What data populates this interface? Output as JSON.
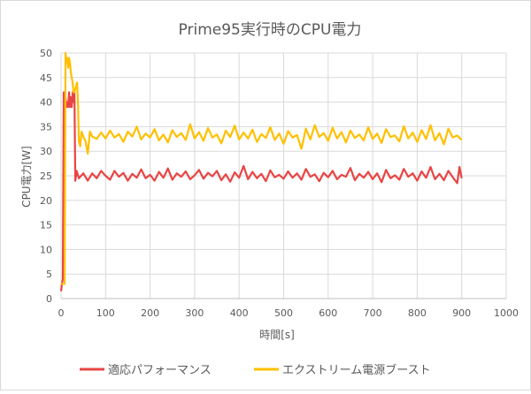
{
  "chart_data": {
    "type": "line",
    "title": "Prime95実行時のCPU電力",
    "xlabel": "時間[s]",
    "ylabel": "CPU電力[W]",
    "xlim": [
      0,
      1000
    ],
    "ylim": [
      0,
      50
    ],
    "xticks": [
      0,
      100,
      200,
      300,
      400,
      500,
      600,
      700,
      800,
      900,
      1000
    ],
    "yticks": [
      0,
      5,
      10,
      15,
      20,
      25,
      30,
      35,
      40,
      45,
      50
    ],
    "grid": true,
    "legend": "bottom",
    "series": [
      {
        "name": "適応パフォーマンス",
        "color": "#e84545",
        "points": [
          [
            0,
            1.5
          ],
          [
            2,
            3
          ],
          [
            4,
            4
          ],
          [
            6,
            42
          ],
          [
            8,
            39
          ],
          [
            10,
            41
          ],
          [
            12,
            39
          ],
          [
            14,
            40
          ],
          [
            16,
            39
          ],
          [
            18,
            42
          ],
          [
            20,
            39
          ],
          [
            22,
            41
          ],
          [
            24,
            39
          ],
          [
            26,
            42
          ],
          [
            28,
            40
          ],
          [
            30,
            42
          ],
          [
            32,
            24
          ],
          [
            35,
            26
          ],
          [
            40,
            24.5
          ],
          [
            50,
            25.5
          ],
          [
            60,
            24
          ],
          [
            70,
            25.5
          ],
          [
            80,
            24.5
          ],
          [
            90,
            26
          ],
          [
            100,
            25
          ],
          [
            110,
            24.2
          ],
          [
            120,
            26
          ],
          [
            130,
            24.8
          ],
          [
            140,
            25.6
          ],
          [
            150,
            24
          ],
          [
            160,
            25.4
          ],
          [
            170,
            24.6
          ],
          [
            180,
            26.3
          ],
          [
            190,
            24.5
          ],
          [
            200,
            25.2
          ],
          [
            210,
            24
          ],
          [
            220,
            25.8
          ],
          [
            230,
            24.6
          ],
          [
            240,
            26.5
          ],
          [
            250,
            24.2
          ],
          [
            260,
            25.5
          ],
          [
            270,
            24.8
          ],
          [
            280,
            25.9
          ],
          [
            290,
            24.3
          ],
          [
            300,
            25.1
          ],
          [
            310,
            26.2
          ],
          [
            320,
            24.4
          ],
          [
            330,
            25.6
          ],
          [
            340,
            24.9
          ],
          [
            350,
            26
          ],
          [
            360,
            24.1
          ],
          [
            370,
            25.3
          ],
          [
            380,
            23.8
          ],
          [
            390,
            25.7
          ],
          [
            400,
            24.6
          ],
          [
            410,
            27
          ],
          [
            420,
            24.3
          ],
          [
            430,
            25.8
          ],
          [
            440,
            24.5
          ],
          [
            450,
            25.4
          ],
          [
            460,
            23.9
          ],
          [
            470,
            26.1
          ],
          [
            480,
            24.7
          ],
          [
            490,
            25.2
          ],
          [
            500,
            24.4
          ],
          [
            510,
            25.9
          ],
          [
            520,
            24.6
          ],
          [
            530,
            25.5
          ],
          [
            540,
            24.2
          ],
          [
            550,
            26.4
          ],
          [
            560,
            24.8
          ],
          [
            570,
            25.3
          ],
          [
            580,
            23.9
          ],
          [
            590,
            25.6
          ],
          [
            600,
            24.7
          ],
          [
            610,
            26
          ],
          [
            620,
            24.3
          ],
          [
            630,
            25.2
          ],
          [
            640,
            24.8
          ],
          [
            650,
            26.6
          ],
          [
            660,
            24.1
          ],
          [
            670,
            25.4
          ],
          [
            680,
            24.6
          ],
          [
            690,
            25.8
          ],
          [
            700,
            24.3
          ],
          [
            710,
            25.5
          ],
          [
            720,
            23.7
          ],
          [
            730,
            26.2
          ],
          [
            740,
            24.5
          ],
          [
            750,
            25.1
          ],
          [
            760,
            24.2
          ],
          [
            770,
            26.4
          ],
          [
            780,
            24.8
          ],
          [
            790,
            25.5
          ],
          [
            800,
            24
          ],
          [
            810,
            25.9
          ],
          [
            820,
            24.6
          ],
          [
            830,
            26.8
          ],
          [
            840,
            24.3
          ],
          [
            850,
            25.4
          ],
          [
            860,
            24.1
          ],
          [
            870,
            26
          ],
          [
            880,
            24.7
          ],
          [
            890,
            23.5
          ],
          [
            895,
            26.8
          ],
          [
            900,
            24.5
          ]
        ]
      },
      {
        "name": "エクストリーム電源ブースト",
        "color": "#ffc000",
        "points": [
          [
            0,
            3
          ],
          [
            4,
            3
          ],
          [
            8,
            3
          ],
          [
            10,
            50
          ],
          [
            12,
            48
          ],
          [
            14,
            49
          ],
          [
            16,
            47
          ],
          [
            18,
            49
          ],
          [
            20,
            48
          ],
          [
            22,
            46
          ],
          [
            24,
            45
          ],
          [
            26,
            44
          ],
          [
            28,
            42
          ],
          [
            30,
            42
          ],
          [
            33,
            43
          ],
          [
            36,
            44
          ],
          [
            38,
            40
          ],
          [
            40,
            32
          ],
          [
            43,
            31
          ],
          [
            46,
            34
          ],
          [
            50,
            33
          ],
          [
            55,
            32
          ],
          [
            60,
            29.5
          ],
          [
            65,
            34
          ],
          [
            70,
            33
          ],
          [
            80,
            32.5
          ],
          [
            90,
            33.8
          ],
          [
            100,
            32.6
          ],
          [
            110,
            34.2
          ],
          [
            120,
            32.8
          ],
          [
            130,
            33.5
          ],
          [
            140,
            31.9
          ],
          [
            150,
            34
          ],
          [
            160,
            33
          ],
          [
            170,
            35
          ],
          [
            180,
            32.4
          ],
          [
            190,
            33.6
          ],
          [
            200,
            32.8
          ],
          [
            210,
            34.5
          ],
          [
            220,
            32.2
          ],
          [
            230,
            33.4
          ],
          [
            240,
            31.8
          ],
          [
            250,
            34.3
          ],
          [
            260,
            32.9
          ],
          [
            270,
            33.7
          ],
          [
            280,
            32.3
          ],
          [
            290,
            35.5
          ],
          [
            300,
            32.6
          ],
          [
            310,
            33.9
          ],
          [
            320,
            32.1
          ],
          [
            330,
            34.7
          ],
          [
            340,
            32.8
          ],
          [
            350,
            33.4
          ],
          [
            360,
            31.6
          ],
          [
            370,
            34.2
          ],
          [
            380,
            32.9
          ],
          [
            390,
            35.2
          ],
          [
            400,
            32.4
          ],
          [
            410,
            33.8
          ],
          [
            420,
            32.6
          ],
          [
            430,
            34.4
          ],
          [
            440,
            31.9
          ],
          [
            450,
            33.5
          ],
          [
            460,
            32.7
          ],
          [
            470,
            34.9
          ],
          [
            480,
            32.3
          ],
          [
            490,
            33.6
          ],
          [
            500,
            31.5
          ],
          [
            510,
            34.1
          ],
          [
            520,
            32.8
          ],
          [
            530,
            33.3
          ],
          [
            540,
            30.5
          ],
          [
            550,
            34.6
          ],
          [
            560,
            32.4
          ],
          [
            570,
            35.3
          ],
          [
            580,
            32.9
          ],
          [
            590,
            33.7
          ],
          [
            600,
            32.1
          ],
          [
            610,
            34.8
          ],
          [
            620,
            32.6
          ],
          [
            630,
            33.9
          ],
          [
            640,
            31.8
          ],
          [
            650,
            34.2
          ],
          [
            660,
            32.7
          ],
          [
            670,
            33.4
          ],
          [
            680,
            32.2
          ],
          [
            690,
            34.9
          ],
          [
            700,
            32.5
          ],
          [
            710,
            33.6
          ],
          [
            720,
            31.7
          ],
          [
            730,
            34.5
          ],
          [
            740,
            32.9
          ],
          [
            750,
            33.2
          ],
          [
            760,
            32
          ],
          [
            770,
            35.1
          ],
          [
            780,
            32.6
          ],
          [
            790,
            33.8
          ],
          [
            800,
            31.9
          ],
          [
            810,
            34.3
          ],
          [
            820,
            32.5
          ],
          [
            830,
            35.3
          ],
          [
            840,
            32.2
          ],
          [
            850,
            33.7
          ],
          [
            860,
            31.4
          ],
          [
            870,
            34.6
          ],
          [
            880,
            32.8
          ],
          [
            890,
            33.2
          ],
          [
            900,
            32.3
          ]
        ]
      }
    ]
  }
}
